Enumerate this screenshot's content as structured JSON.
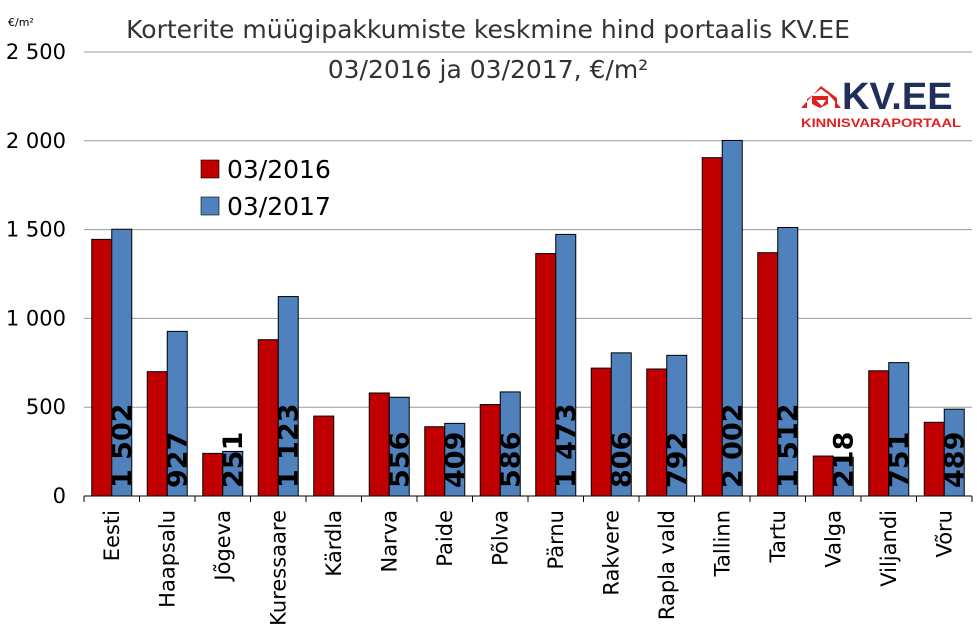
{
  "chart_data": {
    "type": "bar",
    "title": "Korterite müügipakkumiste keskmine hind portaalis KV.EE",
    "subtitle": "03/2016 ja 03/2017, €/m²",
    "unit_label": "€/m²",
    "categories": [
      "Eesti",
      "Haapsalu",
      "Jõgeva",
      "Kuressaare",
      "Kärdla",
      "Narva",
      "Paide",
      "Põlva",
      "Pärnu",
      "Rakvere",
      "Rapla vald",
      "Tallinn",
      "Tartu",
      "Valga",
      "Viljandi",
      "Võru"
    ],
    "series": [
      {
        "name": "03/2016",
        "color": "#C00000",
        "values": [
          1445,
          700,
          240,
          880,
          450,
          580,
          390,
          515,
          1365,
          720,
          715,
          1905,
          1370,
          225,
          705,
          415
        ]
      },
      {
        "name": "03/2017",
        "color": "#4F81BD",
        "values": [
          1502,
          927,
          251,
          1123,
          null,
          556,
          409,
          586,
          1473,
          806,
          792,
          2002,
          1512,
          218,
          751,
          489
        ]
      }
    ],
    "data_labels": [
      "1 502",
      "927",
      "251",
      "1 123",
      "",
      "556",
      "409",
      "586",
      "1 473",
      "806",
      "792",
      "2 002",
      "1 512",
      "218",
      "751",
      "489"
    ],
    "ylim": [
      0,
      2500
    ],
    "yticks": [
      0,
      500,
      1000,
      1500,
      2000,
      2500
    ],
    "ytick_labels": [
      "0",
      "500",
      "1 000",
      "1 500",
      "2 000",
      "2 500"
    ],
    "grid": true,
    "legend_position": "top-left"
  },
  "logo": {
    "name": "KV.EE",
    "tagline": "KINNISVARAPORTAAL",
    "brand_color": "#E02020",
    "text_color": "#1F2F5A"
  }
}
